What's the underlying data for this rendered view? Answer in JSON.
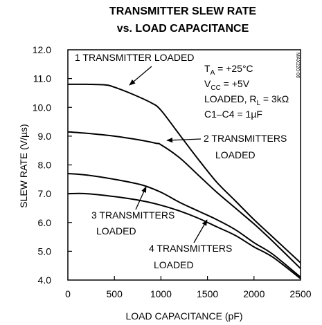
{
  "chart_data": {
    "type": "line",
    "title_line1": "TRANSMITTER SLEW RATE",
    "title_line2": "vs. LOAD CAPACITANCE",
    "xlabel": "LOAD CAPACITANCE (pF)",
    "ylabel": "SLEW RATE (V/µs)",
    "xlim": [
      0,
      2500
    ],
    "ylim": [
      4.0,
      12.0
    ],
    "xticks": [
      0,
      500,
      1000,
      1500,
      2000,
      2500
    ],
    "xtick_labels": [
      "0",
      "500",
      "1000",
      "1500",
      "2000",
      "2500"
    ],
    "yticks": [
      4.0,
      5.0,
      6.0,
      7.0,
      8.0,
      9.0,
      10.0,
      11.0,
      12.0
    ],
    "ytick_labels": [
      "4.0",
      "5.0",
      "6.0",
      "7.0",
      "8.0",
      "9.0",
      "10.0",
      "11.0",
      "12.0"
    ],
    "grid": false,
    "series": [
      {
        "name": "1 TRANSMITTER LOADED",
        "x": [
          0,
          200,
          400,
          500,
          700,
          900,
          1000,
          1200,
          1400,
          1600,
          1800,
          2000,
          2200,
          2500
        ],
        "y": [
          10.8,
          10.8,
          10.78,
          10.7,
          10.45,
          10.15,
          9.9,
          9.05,
          8.2,
          7.4,
          6.75,
          6.1,
          5.5,
          4.6
        ]
      },
      {
        "name": "2 TRANSMITTERS LOADED",
        "x": [
          0,
          200,
          500,
          800,
          950,
          1000,
          1200,
          1400,
          1600,
          1800,
          2000,
          2200,
          2500
        ],
        "y": [
          9.15,
          9.1,
          9.0,
          8.85,
          8.75,
          8.7,
          8.25,
          7.65,
          7.05,
          6.5,
          5.95,
          5.35,
          4.4
        ]
      },
      {
        "name": "3 TRANSMITTERS LOADED",
        "x": [
          0,
          200,
          500,
          800,
          1000,
          1200,
          1400,
          1600,
          1800,
          2000,
          2200,
          2500
        ],
        "y": [
          7.7,
          7.65,
          7.5,
          7.3,
          7.05,
          6.7,
          6.4,
          6.1,
          5.75,
          5.3,
          4.9,
          4.1
        ]
      },
      {
        "name": "4 TRANSMITTERS LOADED",
        "x": [
          0,
          200,
          500,
          800,
          1000,
          1200,
          1400,
          1600,
          1800,
          2000,
          2200,
          2500
        ],
        "y": [
          7.0,
          7.0,
          6.9,
          6.75,
          6.6,
          6.4,
          6.15,
          5.85,
          5.55,
          5.15,
          4.8,
          4.05
        ]
      }
    ],
    "annotations": {
      "label1": "1 TRANSMITTER LOADED",
      "label2a": "2 TRANSMITTERS",
      "label2b": "LOADED",
      "label3a": "3 TRANSMITTERS",
      "label3b": "LOADED",
      "label4a": "4 TRANSMITTERS",
      "label4b": "LOADED",
      "cond_ta_main": "T",
      "cond_ta_sub": "A",
      "cond_ta_val": " = +25°C",
      "cond_vcc_main": "V",
      "cond_vcc_sub": "CC",
      "cond_vcc_val": " = +5V",
      "cond_load_main": "LOADED, R",
      "cond_load_sub": "L",
      "cond_load_val": " = 3kΩ",
      "cond_cap": "C1–C4 = 1µF",
      "part_code": "MAX220-06"
    }
  }
}
